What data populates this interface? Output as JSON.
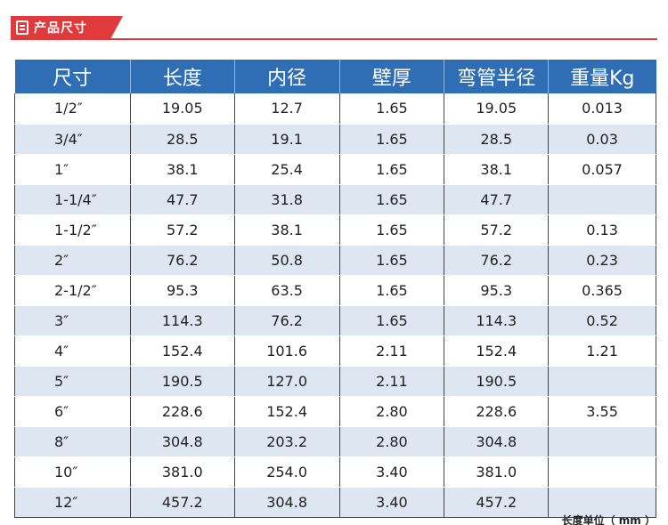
{
  "header": {
    "title": "产品尺寸"
  },
  "table": {
    "columns": [
      "尺寸",
      "长度",
      "内径",
      "壁厚",
      "弯管半径",
      "重量Kg"
    ],
    "rows": [
      [
        "1/2″",
        "19.05",
        "12.7",
        "1.65",
        "19.05",
        "0.013"
      ],
      [
        "3/4″",
        "28.5",
        "19.1",
        "1.65",
        "28.5",
        "0.03"
      ],
      [
        "1″",
        "38.1",
        "25.4",
        "1.65",
        "38.1",
        "0.057"
      ],
      [
        "1-1/4″",
        "47.7",
        "31.8",
        "1.65",
        "47.7",
        ""
      ],
      [
        "1-1/2″",
        "57.2",
        "38.1",
        "1.65",
        "57.2",
        "0.13"
      ],
      [
        "2″",
        "76.2",
        "50.8",
        "1.65",
        "76.2",
        "0.23"
      ],
      [
        "2-1/2″",
        "95.3",
        "63.5",
        "1.65",
        "95.3",
        "0.365"
      ],
      [
        "3″",
        "114.3",
        "76.2",
        "1.65",
        "114.3",
        "0.52"
      ],
      [
        "4″",
        "152.4",
        "101.6",
        "2.11",
        "152.4",
        "1.21"
      ],
      [
        "5″",
        "190.5",
        "127.0",
        "2.11",
        "190.5",
        ""
      ],
      [
        "6″",
        "228.6",
        "152.4",
        "2.80",
        "228.6",
        "3.55"
      ],
      [
        "8″",
        "304.8",
        "203.2",
        "2.80",
        "304.8",
        ""
      ],
      [
        "10″",
        "381.0",
        "254.0",
        "3.40",
        "381.0",
        ""
      ],
      [
        "12″",
        "457.2",
        "304.8",
        "3.40",
        "457.2",
        ""
      ]
    ]
  },
  "unit_note": "长度单位（ mm ）",
  "colors": {
    "accent": "#e03a3c",
    "header_bg": "#2f6eb5",
    "alt_row": "#dde6f1"
  }
}
